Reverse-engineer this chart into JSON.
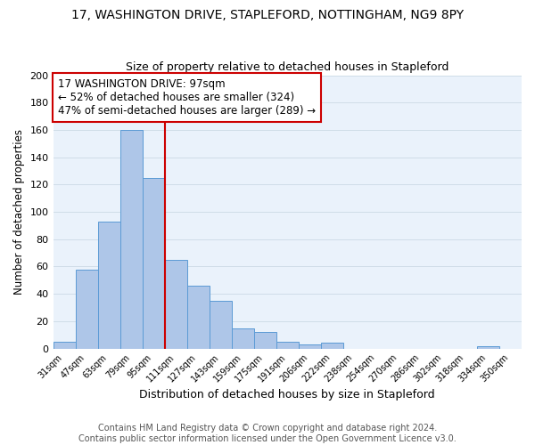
{
  "title_line1": "17, WASHINGTON DRIVE, STAPLEFORD, NOTTINGHAM, NG9 8PY",
  "title_line2": "Size of property relative to detached houses in Stapleford",
  "xlabel": "Distribution of detached houses by size in Stapleford",
  "ylabel": "Number of detached properties",
  "bar_labels": [
    "31sqm",
    "47sqm",
    "63sqm",
    "79sqm",
    "95sqm",
    "111sqm",
    "127sqm",
    "143sqm",
    "159sqm",
    "175sqm",
    "191sqm",
    "206sqm",
    "222sqm",
    "238sqm",
    "254sqm",
    "270sqm",
    "286sqm",
    "302sqm",
    "318sqm",
    "334sqm",
    "350sqm"
  ],
  "bar_values": [
    5,
    58,
    93,
    160,
    125,
    65,
    46,
    35,
    15,
    12,
    5,
    3,
    4,
    0,
    0,
    0,
    0,
    0,
    0,
    2,
    0
  ],
  "bar_color": "#aec6e8",
  "bar_edge_color": "#5b9bd5",
  "vline_color": "#cc0000",
  "vline_position": 4.5,
  "ylim": [
    0,
    200
  ],
  "yticks": [
    0,
    20,
    40,
    60,
    80,
    100,
    120,
    140,
    160,
    180,
    200
  ],
  "annotation_box_text": "17 WASHINGTON DRIVE: 97sqm\n← 52% of detached houses are smaller (324)\n47% of semi-detached houses are larger (289) →",
  "annotation_fontsize": 8.5,
  "footer_line1": "Contains HM Land Registry data © Crown copyright and database right 2024.",
  "footer_line2": "Contains public sector information licensed under the Open Government Licence v3.0.",
  "title_fontsize": 10,
  "subtitle_fontsize": 9,
  "xlabel_fontsize": 9,
  "ylabel_fontsize": 8.5,
  "footer_fontsize": 7,
  "ax_facecolor": "#eaf2fb",
  "grid_color": "#d0dde8"
}
